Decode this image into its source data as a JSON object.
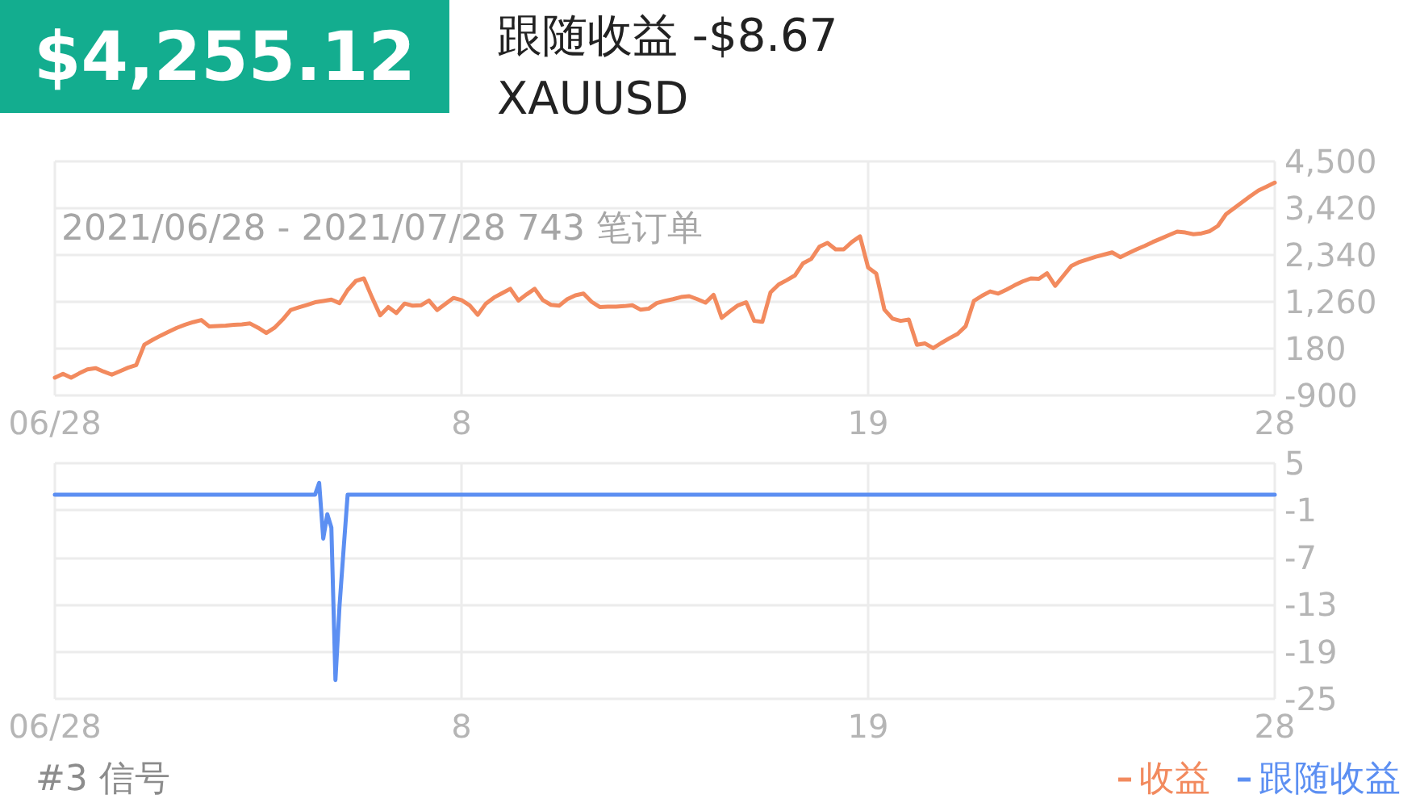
{
  "chart_data": [
    {
      "type": "line",
      "title": "$4,255.12",
      "subtitle": "跟随收益 -$8.67",
      "annotations": [
        "XAUUSD",
        "2021/06/28 - 2021/07/28 743 笔订单"
      ],
      "categories": [
        "06/28",
        null,
        null,
        null,
        null,
        null,
        null,
        null,
        null,
        null,
        null,
        null,
        null,
        null,
        null,
        null,
        null,
        null,
        null,
        null,
        null,
        null,
        null,
        null,
        null,
        null,
        null,
        null,
        null,
        null,
        null,
        null,
        null,
        null,
        null,
        null,
        null,
        null,
        null,
        null,
        null,
        null,
        null,
        null,
        null,
        null,
        null,
        null,
        null,
        null,
        "8",
        null,
        null,
        null,
        null,
        null,
        null,
        null,
        null,
        null,
        null,
        null,
        null,
        null,
        null,
        null,
        null,
        null,
        null,
        null,
        null,
        null,
        null,
        null,
        null,
        null,
        null,
        null,
        null,
        null,
        null,
        null,
        null,
        null,
        null,
        null,
        null,
        null,
        null,
        null,
        null,
        null,
        null,
        null,
        null,
        null,
        null,
        null,
        null,
        null,
        "19",
        null,
        null,
        null,
        null,
        null,
        null,
        null,
        null,
        null,
        null,
        null,
        null,
        null,
        null,
        null,
        null,
        null,
        null,
        null,
        null,
        null,
        null,
        null,
        null,
        null,
        null,
        null,
        null,
        null,
        null,
        null,
        null,
        null,
        null,
        null,
        null,
        null,
        null,
        null,
        null,
        null,
        null,
        null,
        null,
        null,
        null,
        null,
        null,
        null,
        "28"
      ],
      "series": [
        {
          "name": "收益",
          "color": "#f28a5e",
          "values": [
            -490,
            -400,
            -490,
            -390,
            -300,
            -270,
            -350,
            -420,
            -340,
            -260,
            -200,
            270,
            380,
            480,
            570,
            660,
            730,
            790,
            840,
            690,
            700,
            710,
            730,
            740,
            760,
            660,
            540,
            660,
            850,
            1070,
            1130,
            1190,
            1250,
            1280,
            1310,
            1230,
            1530,
            1740,
            1800,
            1360,
            950,
            1140,
            1000,
            1220,
            1170,
            1180,
            1290,
            1070,
            1210,
            1350,
            1300,
            1180,
            960,
            1220,
            1360,
            1460,
            1560,
            1290,
            1430,
            1560,
            1300,
            1190,
            1170,
            1320,
            1410,
            1450,
            1260,
            1140,
            1150,
            1150,
            1160,
            1180,
            1080,
            1100,
            1230,
            1280,
            1320,
            1370,
            1390,
            1320,
            1240,
            1420,
            890,
            1040,
            1180,
            1250,
            820,
            800,
            1480,
            1660,
            1760,
            1870,
            2150,
            2250,
            2530,
            2620,
            2470,
            2470,
            2640,
            2770,
            2050,
            1910,
            1080,
            870,
            820,
            850,
            270,
            300,
            190,
            310,
            420,
            520,
            700,
            1280,
            1400,
            1500,
            1450,
            1540,
            1640,
            1730,
            1800,
            1790,
            1920,
            1630,
            1860,
            2090,
            2180,
            2240,
            2300,
            2350,
            2400,
            2290,
            2380,
            2470,
            2550,
            2640,
            2720,
            2800,
            2880,
            2860,
            2820,
            2840,
            2890,
            3010,
            3280,
            3420,
            3560,
            3700,
            3830,
            3920,
            4010
          ]
        }
      ],
      "ylim": [
        -900,
        4500
      ],
      "yticks": [
        -900,
        180,
        {
          "value": 1260,
          "label": "1,260"
        },
        {
          "value": 2340,
          "label": "2,340"
        },
        {
          "value": 3420,
          "label": "3,420"
        },
        {
          "value": 4500,
          "label": "4,500"
        }
      ],
      "grid": true,
      "legend": "bottom right",
      "marker": "none"
    },
    {
      "type": "line",
      "annotations": [
        "#3 信号"
      ],
      "categories": [
        "06/28",
        null,
        null,
        null,
        null,
        null,
        null,
        null,
        null,
        null,
        null,
        null,
        null,
        null,
        null,
        null,
        null,
        null,
        null,
        null,
        null,
        null,
        null,
        null,
        null,
        null,
        null,
        null,
        null,
        null,
        null,
        null,
        null,
        null,
        null,
        null,
        null,
        null,
        null,
        null,
        null,
        null,
        null,
        null,
        null,
        null,
        null,
        null,
        null,
        null,
        null,
        null,
        null,
        null,
        null,
        null,
        null,
        null,
        null,
        null,
        null,
        null,
        null,
        null,
        null,
        null,
        null,
        null,
        null,
        null,
        null,
        null,
        null,
        null,
        null,
        null,
        null,
        null,
        null,
        null,
        null,
        null,
        null,
        null,
        null,
        null,
        null,
        null,
        null,
        null,
        null,
        null,
        null,
        null,
        null,
        null,
        null,
        null,
        null,
        null,
        "8",
        null,
        null,
        null,
        null,
        null,
        null,
        null,
        null,
        null,
        null,
        null,
        null,
        null,
        null,
        null,
        null,
        null,
        null,
        null,
        null,
        null,
        null,
        null,
        null,
        null,
        null,
        null,
        null,
        null,
        null,
        null,
        null,
        null,
        null,
        null,
        null,
        null,
        null,
        null,
        null,
        null,
        null,
        null,
        null,
        null,
        null,
        null,
        null,
        null,
        null,
        null,
        null,
        null,
        null,
        null,
        null,
        null,
        null,
        null,
        null,
        null,
        null,
        null,
        null,
        null,
        null,
        null,
        null,
        null,
        null,
        null,
        null,
        null,
        null,
        null,
        null,
        null,
        null,
        null,
        null,
        null,
        null,
        null,
        null,
        null,
        null,
        null,
        null,
        null,
        null,
        null,
        null,
        null,
        null,
        null,
        null,
        null,
        null,
        null,
        "19",
        null,
        null,
        null,
        null,
        null,
        null,
        null,
        null,
        null,
        null,
        null,
        null,
        null,
        null,
        null,
        null,
        null,
        null,
        null,
        null,
        null,
        null,
        null,
        null,
        null,
        null,
        null,
        null,
        null,
        null,
        null,
        null,
        null,
        null,
        null,
        null,
        null,
        null,
        null,
        null,
        null,
        null,
        null,
        null,
        null,
        null,
        null,
        null,
        null,
        null,
        null,
        null,
        null,
        null,
        null,
        null,
        null,
        null,
        null,
        null,
        null,
        null,
        null,
        null,
        null,
        null,
        null,
        null,
        null,
        null,
        null,
        null,
        null,
        null,
        null,
        null,
        null,
        null,
        null,
        null,
        null,
        null,
        null,
        null,
        null,
        null,
        null,
        null,
        null,
        null,
        null,
        null,
        null,
        null,
        null,
        null,
        null,
        null,
        null,
        "28"
      ],
      "series": [
        {
          "name": "跟随收益",
          "color": "#5c8ff2",
          "values": [
            1,
            1,
            1,
            1,
            1,
            1,
            1,
            1,
            1,
            1,
            1,
            1,
            1,
            1,
            1,
            1,
            1,
            1,
            1,
            1,
            1,
            1,
            1,
            1,
            1,
            1,
            1,
            1,
            1,
            1,
            1,
            1,
            1,
            1,
            1,
            1,
            1,
            1,
            1,
            1,
            1,
            1,
            1,
            1,
            1,
            1,
            1,
            1,
            1,
            1,
            1,
            1,
            1,
            1,
            1,
            1,
            1,
            1,
            1,
            1,
            1,
            1,
            1,
            1,
            1,
            2.5,
            -4.6,
            -1.5,
            -3.2,
            -22.6,
            -13.2,
            -6,
            1,
            1,
            1,
            1,
            1,
            1,
            1,
            1,
            1,
            1,
            1,
            1,
            1,
            1,
            1,
            1,
            1,
            1,
            1,
            1,
            1,
            1,
            1,
            1,
            1,
            1,
            1,
            1,
            1,
            1,
            1,
            1,
            1,
            1,
            1,
            1,
            1,
            1,
            1,
            1,
            1,
            1,
            1,
            1,
            1,
            1,
            1,
            1,
            1,
            1,
            1,
            1,
            1,
            1,
            1,
            1,
            1,
            1,
            1,
            1,
            1,
            1,
            1,
            1,
            1,
            1,
            1,
            1,
            1,
            1,
            1,
            1,
            1,
            1,
            1,
            1,
            1,
            1,
            1,
            1,
            1,
            1,
            1,
            1,
            1,
            1,
            1,
            1,
            1,
            1,
            1,
            1,
            1,
            1,
            1,
            1,
            1,
            1,
            1,
            1,
            1,
            1,
            1,
            1,
            1,
            1,
            1,
            1,
            1,
            1,
            1,
            1,
            1,
            1,
            1,
            1,
            1,
            1,
            1,
            1,
            1,
            1,
            1,
            1,
            1,
            1,
            1,
            1,
            1,
            1,
            1,
            1,
            1,
            1,
            1,
            1,
            1,
            1,
            1,
            1,
            1,
            1,
            1,
            1,
            1,
            1,
            1,
            1,
            1,
            1,
            1,
            1,
            1,
            1,
            1,
            1,
            1,
            1,
            1,
            1,
            1,
            1,
            1,
            1,
            1,
            1,
            1,
            1,
            1,
            1,
            1,
            1,
            1,
            1,
            1,
            1,
            1,
            1,
            1,
            1,
            1,
            1,
            1,
            1,
            1,
            1,
            1,
            1,
            1,
            1,
            1,
            1,
            1,
            1,
            1,
            1,
            1,
            1,
            1,
            1,
            1,
            1,
            1,
            1,
            1,
            1,
            1,
            1,
            1,
            1,
            1,
            1,
            1,
            1,
            1,
            1,
            1,
            1,
            1,
            1,
            1,
            1,
            1,
            1,
            1,
            1,
            1,
            1,
            1
          ]
        }
      ],
      "ylim": [
        -25,
        5
      ],
      "yticks": [
        -25,
        -19,
        -13,
        -7,
        -1,
        5
      ],
      "grid": true,
      "legend": "bottom right",
      "marker": "none"
    }
  ]
}
